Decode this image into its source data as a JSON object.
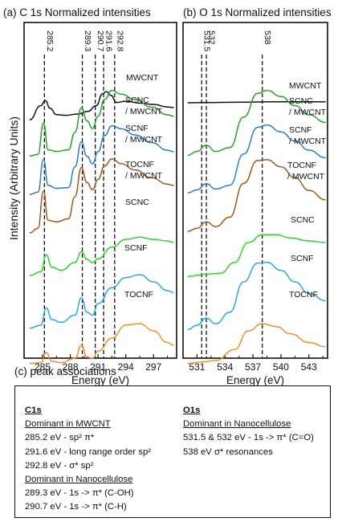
{
  "figure": {
    "panel_a_title": "(a) C 1s Normalized intensities",
    "panel_b_title": "(b) O 1s Normalized intensities",
    "panel_c_title": "(c) peak associations",
    "ylabel": "Intensity (Arbitrary Units)"
  },
  "chart_data": [
    {
      "type": "line",
      "title": "(a) C 1s Normalized intensities",
      "xlabel": "Energy (eV)",
      "ylabel": "Intensity (Arbitrary Units)",
      "xlim": [
        283,
        299.5
      ],
      "xticks": [
        "285",
        "288",
        "291",
        "294",
        "297"
      ],
      "reference_lines": [
        {
          "x": 285.2,
          "label": "285.2"
        },
        {
          "x": 289.3,
          "label": "289.3"
        },
        {
          "x": 290.7,
          "label": "290.7"
        },
        {
          "x": 291.6,
          "label": "291.6"
        },
        {
          "x": 292.8,
          "label": "292.8"
        }
      ],
      "series": [
        {
          "name": "MWCNT",
          "color": "#111111",
          "points": [
            [
              283.6,
              0.02
            ],
            [
              284.8,
              0.46
            ],
            [
              285.3,
              0.62
            ],
            [
              285.8,
              0.38
            ],
            [
              286.5,
              0.18
            ],
            [
              287.5,
              0.16
            ],
            [
              288.8,
              0.2
            ],
            [
              289.9,
              0.28
            ],
            [
              290.8,
              0.46
            ],
            [
              291.5,
              0.83
            ],
            [
              291.9,
              0.9
            ],
            [
              292.4,
              0.78
            ],
            [
              293.0,
              0.56
            ],
            [
              294.0,
              0.6
            ],
            [
              295.5,
              0.54
            ],
            [
              297.0,
              0.5
            ],
            [
              298.5,
              0.42
            ],
            [
              299.2,
              0.4
            ]
          ]
        },
        {
          "name": "SCNC\n/ MWCNT",
          "color": "#2aa02a",
          "points": [
            [
              283.6,
              0.04
            ],
            [
              284.5,
              0.06
            ],
            [
              285.1,
              0.47
            ],
            [
              285.6,
              0.12
            ],
            [
              286.5,
              0.1
            ],
            [
              287.8,
              0.12
            ],
            [
              288.5,
              0.35
            ],
            [
              289.2,
              0.67
            ],
            [
              289.8,
              0.5
            ],
            [
              290.4,
              0.4
            ],
            [
              291.0,
              0.56
            ],
            [
              291.7,
              0.78
            ],
            [
              292.5,
              0.9
            ],
            [
              293.5,
              0.85
            ],
            [
              295.0,
              0.78
            ],
            [
              296.8,
              0.68
            ],
            [
              298.5,
              0.58
            ],
            [
              299.2,
              0.56
            ]
          ]
        },
        {
          "name": "SCNF\n/ MWCNT",
          "color": "#2f7fc0",
          "points": [
            [
              283.6,
              0.02
            ],
            [
              284.5,
              0.05
            ],
            [
              285.1,
              0.48
            ],
            [
              285.6,
              0.14
            ],
            [
              286.5,
              0.1
            ],
            [
              287.8,
              0.11
            ],
            [
              288.5,
              0.38
            ],
            [
              289.2,
              0.71
            ],
            [
              289.8,
              0.52
            ],
            [
              290.4,
              0.42
            ],
            [
              291.0,
              0.58
            ],
            [
              291.7,
              0.79
            ],
            [
              292.5,
              0.92
            ],
            [
              293.5,
              0.88
            ],
            [
              295.0,
              0.8
            ],
            [
              296.8,
              0.7
            ],
            [
              298.5,
              0.6
            ],
            [
              299.2,
              0.58
            ]
          ]
        },
        {
          "name": "TOCNF\n/ MWCNT",
          "color": "#9a5a22",
          "points": [
            [
              283.6,
              0.02
            ],
            [
              284.5,
              0.08
            ],
            [
              285.1,
              0.55
            ],
            [
              285.6,
              0.18
            ],
            [
              286.5,
              0.16
            ],
            [
              287.8,
              0.2
            ],
            [
              288.5,
              0.48
            ],
            [
              289.2,
              0.85
            ],
            [
              289.8,
              0.66
            ],
            [
              290.4,
              0.57
            ],
            [
              291.0,
              0.7
            ],
            [
              291.7,
              0.87
            ],
            [
              292.5,
              0.96
            ],
            [
              293.5,
              0.9
            ],
            [
              295.0,
              0.82
            ],
            [
              296.8,
              0.72
            ],
            [
              298.5,
              0.64
            ],
            [
              299.2,
              0.62
            ]
          ]
        },
        {
          "name": "SCNC",
          "color": "#2bd62b",
          "points": [
            [
              283.6,
              0.05
            ],
            [
              284.8,
              0.1
            ],
            [
              285.4,
              0.32
            ],
            [
              286.0,
              0.16
            ],
            [
              287.0,
              0.12
            ],
            [
              288.5,
              0.22
            ],
            [
              289.2,
              0.36
            ],
            [
              289.8,
              0.26
            ],
            [
              290.4,
              0.22
            ],
            [
              291.0,
              0.27
            ],
            [
              292.5,
              0.42
            ],
            [
              294.0,
              0.52
            ],
            [
              295.5,
              0.55
            ],
            [
              297.0,
              0.52
            ],
            [
              298.5,
              0.5
            ],
            [
              299.2,
              0.48
            ]
          ]
        },
        {
          "name": "SCNF",
          "color": "#2fa8e0",
          "points": [
            [
              283.6,
              0.06
            ],
            [
              284.8,
              0.1
            ],
            [
              285.4,
              0.34
            ],
            [
              286.0,
              0.18
            ],
            [
              287.0,
              0.14
            ],
            [
              288.5,
              0.24
            ],
            [
              289.2,
              0.48
            ],
            [
              289.8,
              0.28
            ],
            [
              290.4,
              0.24
            ],
            [
              291.0,
              0.4
            ],
            [
              292.5,
              0.62
            ],
            [
              294.0,
              0.76
            ],
            [
              295.5,
              0.8
            ],
            [
              297.0,
              0.7
            ],
            [
              298.5,
              0.58
            ],
            [
              299.2,
              0.55
            ]
          ]
        },
        {
          "name": "TOCNF",
          "color": "#f0902a",
          "points": [
            [
              283.6,
              0.05
            ],
            [
              284.8,
              0.06
            ],
            [
              285.4,
              0.2
            ],
            [
              286.0,
              0.08
            ],
            [
              287.0,
              0.06
            ],
            [
              288.5,
              0.12
            ],
            [
              289.2,
              0.3
            ],
            [
              289.8,
              0.14
            ],
            [
              290.4,
              0.12
            ],
            [
              291.0,
              0.22
            ],
            [
              292.5,
              0.4
            ],
            [
              294.0,
              0.58
            ],
            [
              295.5,
              0.6
            ],
            [
              297.0,
              0.5
            ],
            [
              298.5,
              0.34
            ],
            [
              299.2,
              0.3
            ]
          ]
        }
      ]
    },
    {
      "type": "line",
      "title": "(b) O 1s Normalized intensities",
      "xlabel": "Energy (eV)",
      "ylabel": "",
      "xlim": [
        529.5,
        545
      ],
      "xticks": [
        "531",
        "534",
        "537",
        "540",
        "543"
      ],
      "reference_lines": [
        {
          "x": 531.5,
          "label": "531.5"
        },
        {
          "x": 532,
          "label": "532"
        },
        {
          "x": 538,
          "label": "538"
        }
      ],
      "series": [
        {
          "name": "MWCNT",
          "color": "#111111",
          "points": [
            [
              530.0,
              0.55
            ],
            [
              533.0,
              0.56
            ],
            [
              536.0,
              0.57
            ],
            [
              539.0,
              0.58
            ],
            [
              542.0,
              0.58
            ],
            [
              544.8,
              0.58
            ]
          ]
        },
        {
          "name": "SCNC\n/ MWCNT",
          "color": "#2aa02a",
          "points": [
            [
              530.0,
              0.05
            ],
            [
              531.0,
              0.1
            ],
            [
              532.0,
              0.18
            ],
            [
              533.0,
              0.1
            ],
            [
              534.5,
              0.15
            ],
            [
              536.0,
              0.55
            ],
            [
              537.5,
              0.86
            ],
            [
              538.5,
              0.9
            ],
            [
              540.0,
              0.82
            ],
            [
              541.5,
              0.7
            ],
            [
              543.0,
              0.58
            ],
            [
              544.8,
              0.48
            ]
          ]
        },
        {
          "name": "SCNF\n/ MWCNT",
          "color": "#2f7fc0",
          "points": [
            [
              530.0,
              0.04
            ],
            [
              531.0,
              0.08
            ],
            [
              532.0,
              0.16
            ],
            [
              533.0,
              0.09
            ],
            [
              534.5,
              0.14
            ],
            [
              536.0,
              0.55
            ],
            [
              537.5,
              0.9
            ],
            [
              538.5,
              0.93
            ],
            [
              540.0,
              0.84
            ],
            [
              541.5,
              0.72
            ],
            [
              543.0,
              0.6
            ],
            [
              544.8,
              0.5
            ]
          ]
        },
        {
          "name": "TOCNF\n/ MWCNT",
          "color": "#9a5a22",
          "points": [
            [
              530.0,
              0.04
            ],
            [
              531.0,
              0.08
            ],
            [
              532.0,
              0.16
            ],
            [
              533.0,
              0.1
            ],
            [
              534.5,
              0.22
            ],
            [
              536.0,
              0.65
            ],
            [
              537.5,
              0.94
            ],
            [
              538.5,
              0.95
            ],
            [
              540.0,
              0.86
            ],
            [
              541.5,
              0.72
            ],
            [
              543.0,
              0.56
            ],
            [
              544.8,
              0.44
            ]
          ]
        },
        {
          "name": "SCNC",
          "color": "#2bd62b",
          "points": [
            [
              530.0,
              0.04
            ],
            [
              532.0,
              0.07
            ],
            [
              533.5,
              0.08
            ],
            [
              535.0,
              0.22
            ],
            [
              536.5,
              0.48
            ],
            [
              538.0,
              0.58
            ],
            [
              539.5,
              0.58
            ],
            [
              541.0,
              0.54
            ],
            [
              543.0,
              0.5
            ],
            [
              544.8,
              0.48
            ]
          ]
        },
        {
          "name": "SCNF",
          "color": "#2fa8e0",
          "points": [
            [
              530.0,
              0.04
            ],
            [
              531.0,
              0.1
            ],
            [
              532.0,
              0.2
            ],
            [
              533.0,
              0.12
            ],
            [
              534.5,
              0.28
            ],
            [
              536.0,
              0.7
            ],
            [
              537.5,
              0.96
            ],
            [
              538.5,
              0.97
            ],
            [
              540.0,
              0.86
            ],
            [
              541.5,
              0.7
            ],
            [
              543.0,
              0.54
            ],
            [
              544.8,
              0.44
            ]
          ]
        },
        {
          "name": "TOCNF",
          "color": "#f0902a",
          "points": [
            [
              530.0,
              0.05
            ],
            [
              531.5,
              0.07
            ],
            [
              533.0,
              0.09
            ],
            [
              535.0,
              0.24
            ],
            [
              536.5,
              0.5
            ],
            [
              538.0,
              0.6
            ],
            [
              539.5,
              0.56
            ],
            [
              541.0,
              0.46
            ],
            [
              543.0,
              0.34
            ],
            [
              544.8,
              0.28
            ]
          ]
        }
      ]
    }
  ],
  "peak_associations": {
    "c1s": {
      "header": "C1s",
      "group1_title": "Dominant in MWCNT",
      "g1_l1": "285.2 eV - sp² π*",
      "g1_l2": "291.6 eV - long range order sp²",
      "g1_l3": "292.8 eV - σ* sp²",
      "group2_title": "Dominant in Nanocellulose",
      "g2_l1": "289.3 eV - 1s -> π* (C-OH)",
      "g2_l2": "290.7 eV - 1s -> π* (C-H)"
    },
    "o1s": {
      "header": "O1s",
      "group1_title": "Dominant in Nanocellulose",
      "g1_l1": "531.5 & 532 eV - 1s -> π* (C=O)",
      "g1_l2": "538 eV σ* resonances"
    }
  }
}
